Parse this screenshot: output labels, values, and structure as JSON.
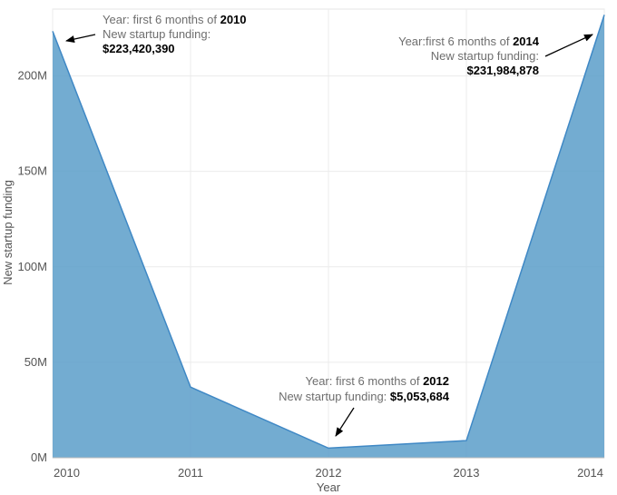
{
  "chart_data": {
    "type": "area",
    "x": [
      "2010",
      "2011",
      "2012",
      "2013",
      "2014"
    ],
    "series": [
      {
        "values": [
          223420390,
          37000000,
          5053684,
          9000000,
          231984878
        ]
      }
    ],
    "xlabel": "Year",
    "ylabel": "New startup funding",
    "ylim": [
      0,
      235000000
    ],
    "yticks": [
      0,
      50000000,
      100000000,
      150000000,
      200000000
    ],
    "ytick_labels": [
      "0M",
      "50M",
      "100M",
      "150M",
      "200M"
    ],
    "grid": true,
    "colors": {
      "fill": "#5b9ec9",
      "line": "#3f88c5"
    },
    "annotations": [
      {
        "point": "2010",
        "line1_prefix": "Year: first 6 months of ",
        "line1_bold": "2010",
        "line2": "New startup funding:",
        "value": "$223,420,390"
      },
      {
        "point": "2012",
        "line1_prefix": "Year: first 6 months of ",
        "line1_bold": "2012",
        "line2": "New startup funding: ",
        "value": "$5,053,684"
      },
      {
        "point": "2014",
        "line1_prefix": "Year:first 6 months of ",
        "line1_bold": "2014",
        "line2": "New startup funding:",
        "value": "$231,984,878"
      }
    ]
  }
}
